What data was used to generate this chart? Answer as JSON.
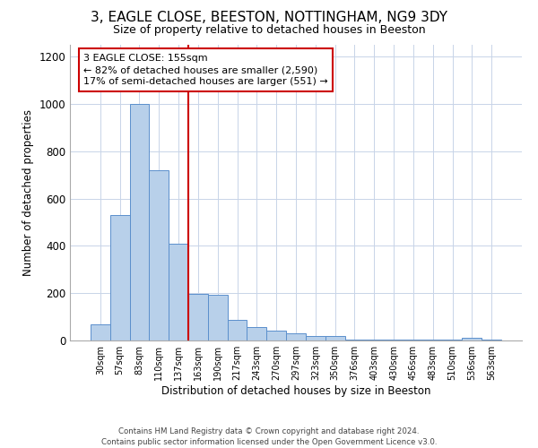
{
  "title_line1": "3, EAGLE CLOSE, BEESTON, NOTTINGHAM, NG9 3DY",
  "title_line2": "Size of property relative to detached houses in Beeston",
  "xlabel": "Distribution of detached houses by size in Beeston",
  "ylabel": "Number of detached properties",
  "footer_line1": "Contains HM Land Registry data © Crown copyright and database right 2024.",
  "footer_line2": "Contains public sector information licensed under the Open Government Licence v3.0.",
  "bar_labels": [
    "30sqm",
    "57sqm",
    "83sqm",
    "110sqm",
    "137sqm",
    "163sqm",
    "190sqm",
    "217sqm",
    "243sqm",
    "270sqm",
    "297sqm",
    "323sqm",
    "350sqm",
    "376sqm",
    "403sqm",
    "430sqm",
    "456sqm",
    "483sqm",
    "510sqm",
    "536sqm",
    "563sqm"
  ],
  "bar_values": [
    68,
    530,
    1000,
    720,
    410,
    198,
    195,
    88,
    58,
    40,
    30,
    20,
    20,
    5,
    5,
    5,
    5,
    5,
    5,
    10,
    5
  ],
  "bar_color": "#b8d0ea",
  "bar_edge_color": "#5b8fcc",
  "background_color": "#ffffff",
  "grid_color": "#c8d4e8",
  "vline_color": "#cc0000",
  "annotation_text": "3 EAGLE CLOSE: 155sqm\n← 82% of detached houses are smaller (2,590)\n17% of semi-detached houses are larger (551) →",
  "annotation_box_color": "#ffffff",
  "annotation_box_edge": "#cc0000",
  "ylim": [
    0,
    1250
  ],
  "yticks": [
    0,
    200,
    400,
    600,
    800,
    1000,
    1200
  ],
  "vline_pos": 4.5
}
